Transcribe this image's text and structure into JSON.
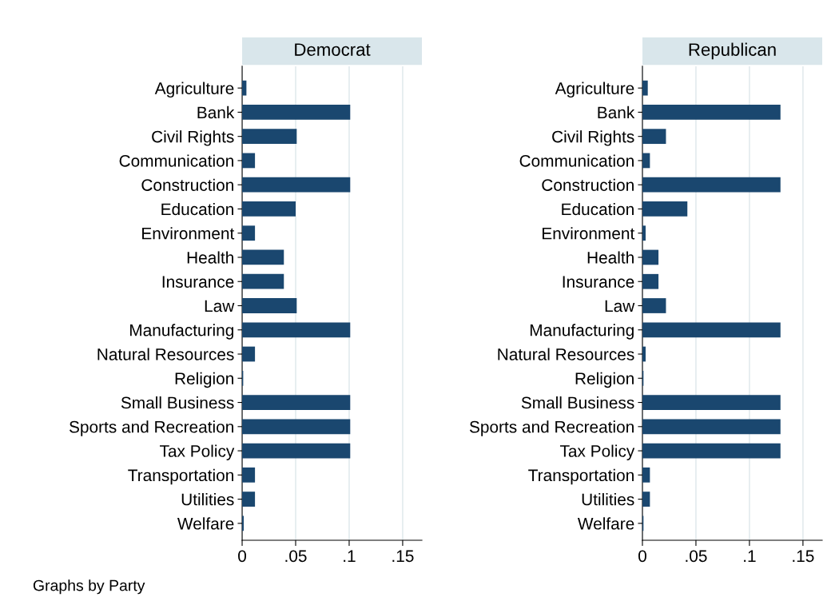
{
  "chart_data": [
    {
      "type": "bar",
      "orientation": "horizontal",
      "title": "Democrat",
      "categories": [
        "Agriculture",
        "Bank",
        "Civil Rights",
        "Communication",
        "Construction",
        "Education",
        "Environment",
        "Health",
        "Insurance",
        "Law",
        "Manufacturing",
        "Natural Resources",
        "Religion",
        "Small Business",
        "Sports and Recreation",
        "Tax Policy",
        "Transportation",
        "Utilities",
        "Welfare"
      ],
      "values": [
        0.004,
        0.101,
        0.051,
        0.012,
        0.101,
        0.05,
        0.012,
        0.039,
        0.039,
        0.051,
        0.101,
        0.012,
        0.001,
        0.101,
        0.101,
        0.101,
        0.012,
        0.012,
        0.0015
      ],
      "color": "#1a476f",
      "xlim": [
        0,
        0.168
      ],
      "xticks": [
        0,
        {
          "value": 0.05,
          "label": ".05"
        },
        {
          "value": 0.1,
          "label": ".1"
        },
        {
          "value": 0.15,
          "label": ".15"
        }
      ],
      "grid": "x",
      "annotations": [
        "Graphs by Party"
      ]
    },
    {
      "type": "bar",
      "orientation": "horizontal",
      "title": "Republican",
      "categories": [
        "Agriculture",
        "Bank",
        "Civil Rights",
        "Communication",
        "Construction",
        "Education",
        "Environment",
        "Health",
        "Insurance",
        "Law",
        "Manufacturing",
        "Natural Resources",
        "Religion",
        "Small Business",
        "Sports and Recreation",
        "Tax Policy",
        "Transportation",
        "Utilities",
        "Welfare"
      ],
      "values": [
        0.005,
        0.129,
        0.022,
        0.007,
        0.129,
        0.042,
        0.003,
        0.015,
        0.015,
        0.022,
        0.129,
        0.003,
        0.001,
        0.129,
        0.129,
        0.129,
        0.007,
        0.007,
        0.001
      ],
      "color": "#1a476f",
      "xlim": [
        0,
        0.168
      ],
      "xticks": [
        0,
        {
          "value": 0.05,
          "label": ".05"
        },
        {
          "value": 0.1,
          "label": ".1"
        },
        {
          "value": 0.15,
          "label": ".15"
        }
      ],
      "grid": "x"
    }
  ]
}
